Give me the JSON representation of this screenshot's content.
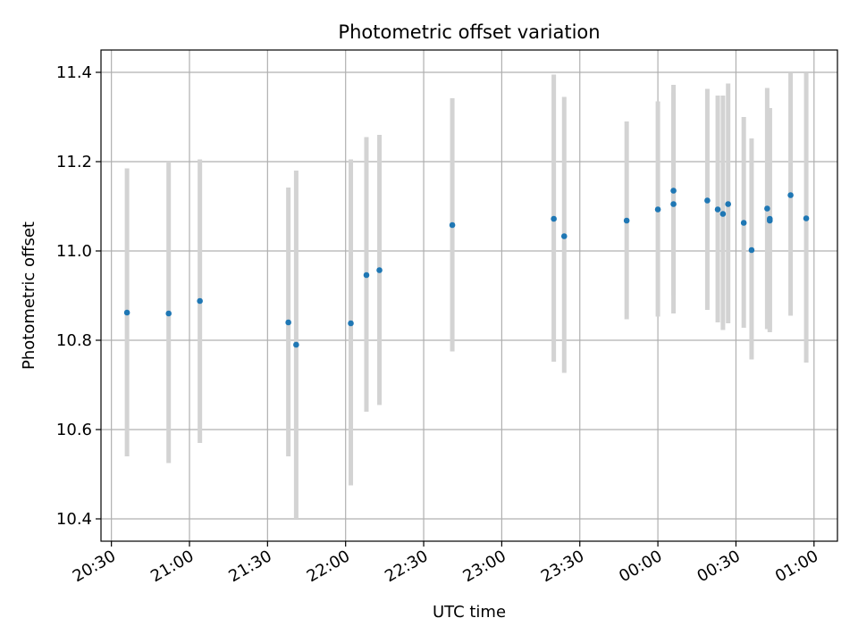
{
  "chart_data": {
    "type": "scatter",
    "title": "Photometric offset variation",
    "xlabel": "UTC time",
    "ylabel": "Photometric offset",
    "grid": true,
    "xlim": [
      "20:26",
      "01:09"
    ],
    "ylim": [
      10.35,
      11.45
    ],
    "x_ticks": [
      {
        "t": "20:30",
        "label": "20:30"
      },
      {
        "t": "21:00",
        "label": "21:00"
      },
      {
        "t": "21:30",
        "label": "21:30"
      },
      {
        "t": "22:00",
        "label": "22:00"
      },
      {
        "t": "22:30",
        "label": "22:30"
      },
      {
        "t": "23:00",
        "label": "23:00"
      },
      {
        "t": "23:30",
        "label": "23:30"
      },
      {
        "t": "00:00",
        "label": "00:00"
      },
      {
        "t": "00:30",
        "label": "00:30"
      },
      {
        "t": "01:00",
        "label": "01:00"
      }
    ],
    "y_ticks": [
      "10.4",
      "10.6",
      "10.8",
      "11.0",
      "11.2",
      "11.4"
    ],
    "marker_color": "#1f77b4",
    "errorbar_color": "#d3d3d3",
    "points": [
      {
        "time": "20:36",
        "y": 10.862,
        "ylow": 10.54,
        "yhigh": 11.185
      },
      {
        "time": "20:52",
        "y": 10.86,
        "ylow": 10.525,
        "yhigh": 11.2
      },
      {
        "time": "21:04",
        "y": 10.888,
        "ylow": 10.57,
        "yhigh": 11.205
      },
      {
        "time": "21:38",
        "y": 10.84,
        "ylow": 10.54,
        "yhigh": 11.142
      },
      {
        "time": "21:41",
        "y": 10.79,
        "ylow": 10.4,
        "yhigh": 11.18
      },
      {
        "time": "22:02",
        "y": 10.838,
        "ylow": 10.475,
        "yhigh": 11.205
      },
      {
        "time": "22:08",
        "y": 10.946,
        "ylow": 10.64,
        "yhigh": 11.255
      },
      {
        "time": "22:13",
        "y": 10.957,
        "ylow": 10.655,
        "yhigh": 11.26
      },
      {
        "time": "22:41",
        "y": 11.058,
        "ylow": 10.775,
        "yhigh": 11.342
      },
      {
        "time": "23:20",
        "y": 11.072,
        "ylow": 10.752,
        "yhigh": 11.395
      },
      {
        "time": "23:24",
        "y": 11.033,
        "ylow": 10.727,
        "yhigh": 11.345
      },
      {
        "time": "23:48",
        "y": 11.068,
        "ylow": 10.847,
        "yhigh": 11.29
      },
      {
        "time": "00:00",
        "y": 11.093,
        "ylow": 10.853,
        "yhigh": 11.335
      },
      {
        "time": "00:06",
        "y": 11.105,
        "ylow": 10.86,
        "yhigh": 11.355
      },
      {
        "time": "00:06",
        "y": 11.135,
        "ylow": 10.9,
        "yhigh": 11.372
      },
      {
        "time": "00:19",
        "y": 11.113,
        "ylow": 10.868,
        "yhigh": 11.363
      },
      {
        "time": "00:23",
        "y": 11.093,
        "ylow": 10.84,
        "yhigh": 11.348
      },
      {
        "time": "00:25",
        "y": 11.083,
        "ylow": 10.823,
        "yhigh": 11.348
      },
      {
        "time": "00:27",
        "y": 11.105,
        "ylow": 10.838,
        "yhigh": 11.375
      },
      {
        "time": "00:33",
        "y": 11.063,
        "ylow": 10.828,
        "yhigh": 11.3
      },
      {
        "time": "00:36",
        "y": 11.002,
        "ylow": 10.757,
        "yhigh": 11.252
      },
      {
        "time": "00:42",
        "y": 11.095,
        "ylow": 10.825,
        "yhigh": 11.365
      },
      {
        "time": "00:43",
        "y": 11.068,
        "ylow": 10.818,
        "yhigh": 11.32
      },
      {
        "time": "00:43",
        "y": 11.072,
        "ylow": 10.823,
        "yhigh": 11.32
      },
      {
        "time": "00:51",
        "y": 11.125,
        "ylow": 10.855,
        "yhigh": 11.398
      },
      {
        "time": "00:57",
        "y": 11.073,
        "ylow": 10.75,
        "yhigh": 11.398
      }
    ]
  }
}
